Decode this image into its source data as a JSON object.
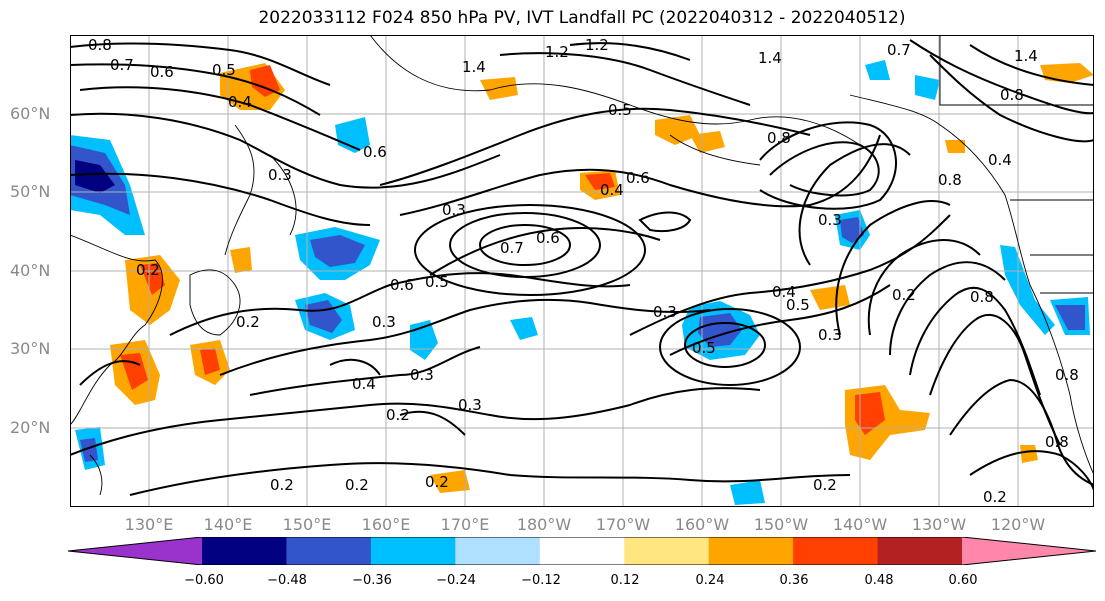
{
  "title": "2022033112 F024 850 hPa PV, IVT Landfall PC (2022040312 - 2022040512)",
  "lat_labels": [
    "60°N",
    "50°N",
    "40°N",
    "30°N",
    "20°N"
  ],
  "lon_labels": [
    "130°E",
    "140°E",
    "150°E",
    "160°E",
    "170°E",
    "180°W",
    "170°W",
    "160°W",
    "150°W",
    "140°W",
    "130°W",
    "120°W"
  ],
  "colorbar": {
    "tick_labels": [
      "−0.60",
      "−0.48",
      "−0.36",
      "−0.24",
      "−0.12",
      "0.12",
      "0.24",
      "0.36",
      "0.48",
      "0.60"
    ],
    "colors": [
      "#9933cc",
      "#000080",
      "#3355cc",
      "#00bfff",
      "#b0e0ff",
      "#ffffff",
      "#ffe680",
      "#ffa500",
      "#ff4000",
      "#b22222",
      "#ff88aa"
    ]
  },
  "contour_labels": [
    "0.8",
    "0.7",
    "0.6",
    "0.5",
    "0.4",
    "1.4",
    "1.2",
    "1.2",
    "1.4",
    "0.5",
    "0.6",
    "0.3",
    "0.3",
    "0.7",
    "0.6",
    "0.5",
    "0.6",
    "0.3",
    "0.2",
    "0.2",
    "0.4",
    "0.3",
    "0.2",
    "0.3",
    "0.3",
    "0.4",
    "0.5",
    "0.5",
    "0.3",
    "0.3",
    "0.2",
    "0.2",
    "0.2",
    "0.2",
    "0.2",
    "0.4",
    "0.8",
    "0.8",
    "0.2",
    "0.8",
    "1.4",
    "0.8",
    "0.7",
    "0.4",
    "0.8",
    "0.6",
    "0.8"
  ]
}
